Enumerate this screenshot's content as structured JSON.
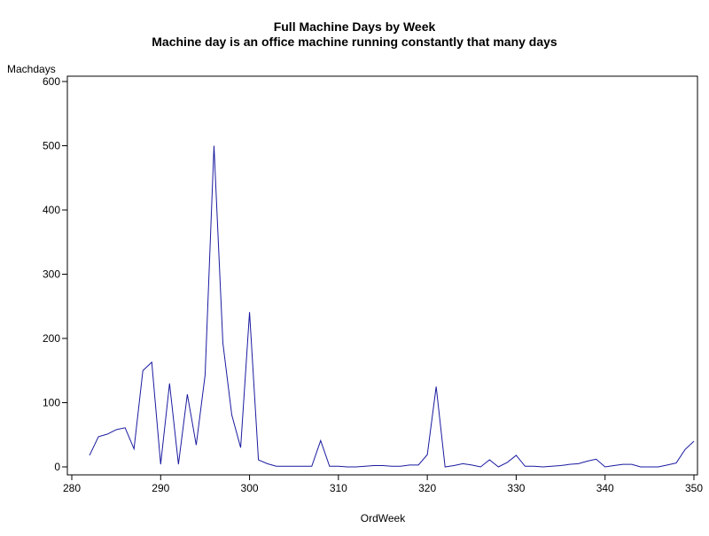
{
  "chart_data": {
    "type": "line",
    "title": "Full Machine Days by Week",
    "subtitle": "Machine day is an office machine running constantly that many days",
    "x_label": "OrdWeek",
    "y_label": "Machdays",
    "x": [
      282,
      283,
      284,
      285,
      286,
      287,
      288,
      289,
      290,
      291,
      292,
      293,
      294,
      295,
      296,
      297,
      298,
      299,
      300,
      301,
      302,
      303,
      304,
      305,
      306,
      307,
      308,
      309,
      310,
      311,
      312,
      313,
      314,
      315,
      316,
      317,
      318,
      319,
      320,
      321,
      322,
      323,
      324,
      325,
      326,
      327,
      328,
      329,
      330,
      331,
      332,
      333,
      334,
      335,
      336,
      337,
      338,
      339,
      340,
      341,
      342,
      343,
      344,
      345,
      346,
      347,
      348,
      349,
      350
    ],
    "series": [
      {
        "color": "#1a1aa0",
        "values": [
          18,
          47,
          51,
          58,
          61,
          28,
          150,
          163,
          4,
          130,
          4,
          113,
          34,
          143,
          500,
          193,
          81,
          30,
          241,
          11,
          5,
          1,
          1,
          1,
          1,
          1,
          41,
          1,
          1,
          0,
          0,
          1,
          2,
          2,
          1,
          1,
          3,
          3,
          19,
          125,
          0,
          2,
          5,
          3,
          0,
          11,
          0,
          7,
          18,
          1,
          1,
          0,
          1,
          2,
          4,
          5,
          9,
          12,
          0,
          2,
          4,
          4,
          0,
          0,
          0,
          3,
          6,
          27,
          40
        ]
      }
    ],
    "xlim": [
      280,
      350
    ],
    "xticks": [
      280,
      290,
      300,
      310,
      320,
      330,
      340,
      350
    ],
    "ylim": [
      0,
      600
    ],
    "yticks": [
      0,
      100,
      200,
      300,
      400,
      500,
      600
    ]
  }
}
